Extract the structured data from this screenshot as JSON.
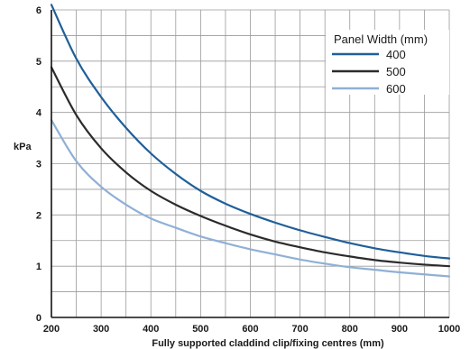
{
  "chart_data": {
    "type": "line",
    "xlabel": "Fully supported claddind clip/fixing centres (mm)",
    "ylabel": "kPa",
    "xlim": [
      200,
      1000
    ],
    "ylim": [
      0,
      6
    ],
    "x_ticks": [
      200,
      300,
      400,
      500,
      600,
      700,
      800,
      900,
      1000
    ],
    "y_ticks": [
      0,
      1,
      2,
      3,
      4,
      5,
      6
    ],
    "x_grid_step": 50,
    "y_grid_step": 0.5,
    "grid": true,
    "legend": {
      "title": "Panel Width (mm)",
      "placement": "top-right"
    },
    "x": [
      200,
      250,
      300,
      350,
      400,
      450,
      500,
      550,
      600,
      650,
      700,
      750,
      800,
      850,
      900,
      950,
      1000
    ],
    "series": [
      {
        "name": "400",
        "color": "#1f5f99",
        "values": [
          6.1,
          5.05,
          4.3,
          3.7,
          3.2,
          2.8,
          2.47,
          2.22,
          2.02,
          1.85,
          1.7,
          1.57,
          1.45,
          1.35,
          1.27,
          1.2,
          1.15
        ]
      },
      {
        "name": "500",
        "color": "#2b2b2b",
        "values": [
          4.88,
          3.95,
          3.3,
          2.83,
          2.47,
          2.2,
          1.98,
          1.79,
          1.62,
          1.48,
          1.37,
          1.27,
          1.19,
          1.12,
          1.07,
          1.03,
          1.0
        ]
      },
      {
        "name": "600",
        "color": "#8fb0d6",
        "values": [
          3.85,
          3.05,
          2.55,
          2.2,
          1.93,
          1.75,
          1.58,
          1.45,
          1.33,
          1.23,
          1.13,
          1.05,
          0.98,
          0.93,
          0.88,
          0.84,
          0.8
        ]
      }
    ]
  }
}
